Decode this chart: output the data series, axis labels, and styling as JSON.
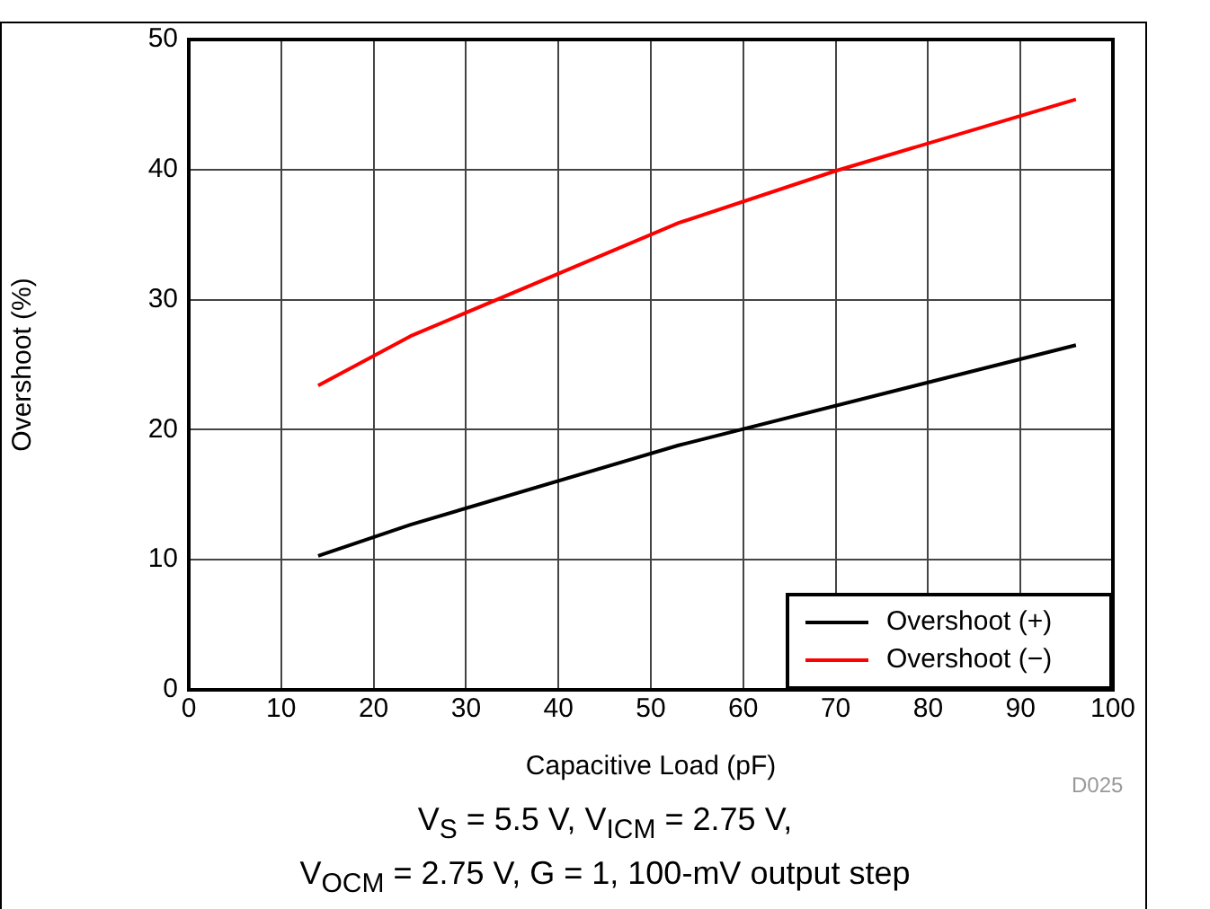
{
  "chart_data": {
    "type": "line",
    "xlabel": "Capacitive Load (pF)",
    "ylabel": "Overshoot (%)",
    "xlim": [
      0,
      100
    ],
    "xticks": [
      0,
      10,
      20,
      30,
      40,
      50,
      60,
      70,
      80,
      90,
      100
    ],
    "ylim": [
      0,
      50
    ],
    "yticks": [
      0,
      10,
      20,
      30,
      40,
      50
    ],
    "grid": true,
    "legend": "bottom right",
    "marker": "none",
    "line_style": "solid",
    "series": [
      {
        "name": "Overshoot (+)",
        "color": "#000000",
        "x": [
          14,
          24,
          53,
          96
        ],
        "values": [
          10.3,
          12.7,
          18.8,
          26.5
        ]
      },
      {
        "name": "Overshoot (−)",
        "color": "#ff0000",
        "x": [
          14,
          24,
          53,
          70,
          96
        ],
        "values": [
          23.4,
          27.2,
          35.9,
          39.9,
          45.4
        ]
      }
    ],
    "annotations": [
      "D025",
      "V$_{S}$ = 5.5 V, V$_{ICM}$ = 2.75 V,",
      "V$_{OCM}$ = 2.75 V, G = 1, 100-mV output step"
    ]
  }
}
